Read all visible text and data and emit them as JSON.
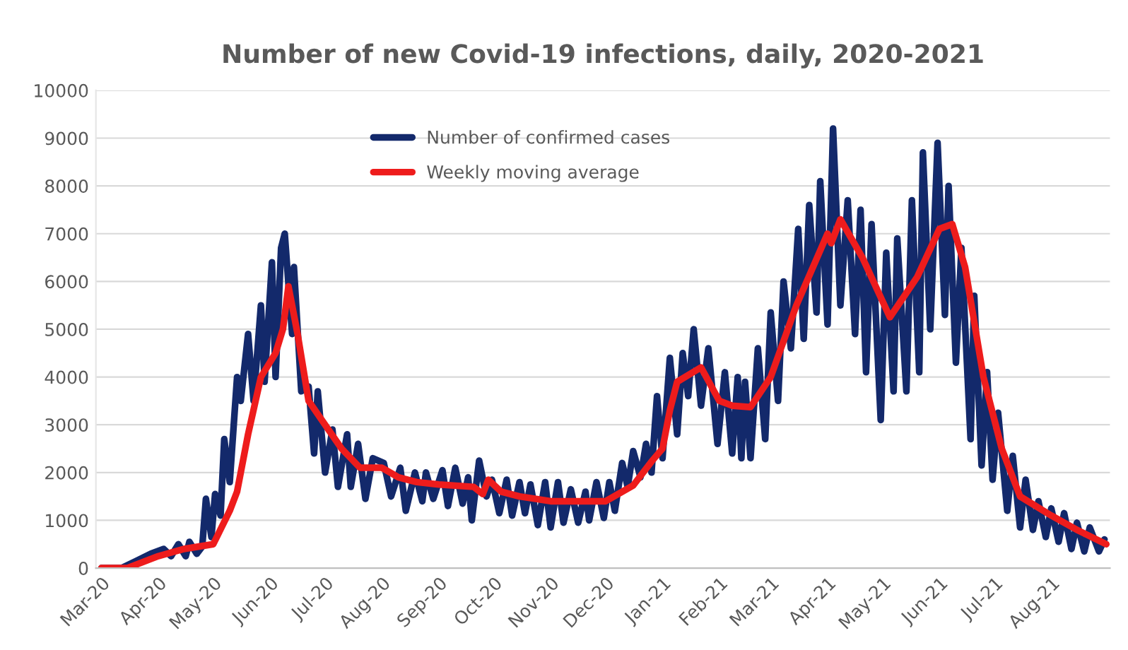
{
  "chart_data": {
    "type": "line",
    "title": "Number of new Covid-19 infections, daily, 2020-2021",
    "series": [
      {
        "name": "Number of confirmed cases",
        "color": "#13296b",
        "x": [
          "2020-03-01",
          "2020-03-12",
          "2020-03-20",
          "2020-03-28",
          "2020-04-04",
          "2020-04-08",
          "2020-04-12",
          "2020-04-16",
          "2020-04-18",
          "2020-04-22",
          "2020-04-25",
          "2020-04-27",
          "2020-04-30",
          "2020-05-02",
          "2020-05-05",
          "2020-05-07",
          "2020-05-10",
          "2020-05-14",
          "2020-05-16",
          "2020-05-20",
          "2020-05-23",
          "2020-05-27",
          "2020-05-29",
          "2020-06-02",
          "2020-06-04",
          "2020-06-07",
          "2020-06-09",
          "2020-06-13",
          "2020-06-14",
          "2020-06-18",
          "2020-06-22",
          "2020-06-25",
          "2020-06-27",
          "2020-07-01",
          "2020-07-05",
          "2020-07-08",
          "2020-07-13",
          "2020-07-15",
          "2020-07-19",
          "2020-07-23",
          "2020-07-27",
          "2020-08-02",
          "2020-08-06",
          "2020-08-11",
          "2020-08-14",
          "2020-08-19",
          "2020-08-23",
          "2020-08-25",
          "2020-08-29",
          "2020-09-03",
          "2020-09-06",
          "2020-09-10",
          "2020-09-14",
          "2020-09-17",
          "2020-09-19",
          "2020-09-23",
          "2020-09-27",
          "2020-09-30",
          "2020-10-04",
          "2020-10-08",
          "2020-10-11",
          "2020-10-15",
          "2020-10-18",
          "2020-10-21",
          "2020-10-25",
          "2020-10-29",
          "2020-11-01",
          "2020-11-05",
          "2020-11-08",
          "2020-11-12",
          "2020-11-16",
          "2020-11-20",
          "2020-11-22",
          "2020-11-26",
          "2020-11-30",
          "2020-12-03",
          "2020-12-06",
          "2020-12-10",
          "2020-12-13",
          "2020-12-16",
          "2020-12-20",
          "2020-12-23",
          "2020-12-26",
          "2020-12-29",
          "2021-01-01",
          "2021-01-05",
          "2021-01-09",
          "2021-01-12",
          "2021-01-15",
          "2021-01-18",
          "2021-01-22",
          "2021-01-26",
          "2021-01-31",
          "2021-02-04",
          "2021-02-08",
          "2021-02-11",
          "2021-02-13",
          "2021-02-15",
          "2021-02-18",
          "2021-02-22",
          "2021-02-26",
          "2021-03-01",
          "2021-03-05",
          "2021-03-08",
          "2021-03-12",
          "2021-03-16",
          "2021-03-19",
          "2021-03-22",
          "2021-03-26",
          "2021-03-28",
          "2021-04-01",
          "2021-04-04",
          "2021-04-08",
          "2021-04-12",
          "2021-04-16",
          "2021-04-19",
          "2021-04-22",
          "2021-04-25",
          "2021-04-30",
          "2021-05-03",
          "2021-05-07",
          "2021-05-09",
          "2021-05-14",
          "2021-05-17",
          "2021-05-21",
          "2021-05-23",
          "2021-05-27",
          "2021-05-31",
          "2021-06-04",
          "2021-06-06",
          "2021-06-10",
          "2021-06-13",
          "2021-06-18",
          "2021-06-20",
          "2021-06-24",
          "2021-06-27",
          "2021-06-30",
          "2021-07-03",
          "2021-07-08",
          "2021-07-11",
          "2021-07-15",
          "2021-07-18",
          "2021-07-22",
          "2021-07-25",
          "2021-07-29",
          "2021-08-01",
          "2021-08-05",
          "2021-08-08",
          "2021-08-12",
          "2021-08-15",
          "2021-08-19",
          "2021-08-22",
          "2021-08-27",
          "2021-08-30"
        ],
        "values": [
          0,
          0,
          150,
          300,
          400,
          250,
          500,
          250,
          550,
          300,
          450,
          1450,
          650,
          1550,
          1100,
          2700,
          1800,
          4000,
          3500,
          4900,
          3500,
          5500,
          3900,
          6400,
          4000,
          6700,
          7000,
          4900,
          6300,
          3700,
          3800,
          2400,
          3700,
          2000,
          2900,
          1700,
          2800,
          1700,
          2600,
          1450,
          2300,
          2200,
          1500,
          2100,
          1200,
          2000,
          1400,
          2000,
          1450,
          2050,
          1300,
          2100,
          1350,
          1900,
          1000,
          2250,
          1500,
          1850,
          1150,
          1850,
          1100,
          1800,
          1150,
          1750,
          900,
          1800,
          850,
          1800,
          950,
          1650,
          950,
          1600,
          1000,
          1800,
          1050,
          1800,
          1200,
          2200,
          1700,
          2450,
          1900,
          2600,
          2000,
          3600,
          2300,
          4400,
          2800,
          4500,
          3600,
          5000,
          3400,
          4600,
          2600,
          4100,
          2400,
          4000,
          2300,
          3900,
          2300,
          4600,
          2700,
          5350,
          3500,
          6000,
          4600,
          7100,
          4800,
          7600,
          5350,
          8100,
          5100,
          9200,
          5500,
          7700,
          4900,
          7500,
          4100,
          7200,
          3100,
          6600,
          3700,
          6900,
          3700,
          7700,
          4100,
          8700,
          5000,
          8900,
          5300,
          8000,
          4300,
          6700,
          2700,
          5700,
          2150,
          4100,
          1850,
          3250,
          1200,
          2350,
          850,
          1850,
          800,
          1400,
          650,
          1250,
          550,
          1150,
          400,
          950,
          350,
          850,
          350,
          600
        ]
      },
      {
        "name": "Weekly moving average",
        "color": "#ee1c1c",
        "x": [
          "2020-03-01",
          "2020-03-15",
          "2020-04-01",
          "2020-04-15",
          "2020-05-01",
          "2020-05-10",
          "2020-05-14",
          "2020-05-20",
          "2020-05-27",
          "2020-06-04",
          "2020-06-08",
          "2020-06-11",
          "2020-06-16",
          "2020-06-22",
          "2020-07-01",
          "2020-07-10",
          "2020-07-20",
          "2020-08-01",
          "2020-08-10",
          "2020-08-20",
          "2020-09-01",
          "2020-09-20",
          "2020-09-25",
          "2020-09-28",
          "2020-10-05",
          "2020-10-15",
          "2020-11-01",
          "2020-12-01",
          "2020-12-16",
          "2020-12-26",
          "2021-01-01",
          "2021-01-05",
          "2021-01-09",
          "2021-01-22",
          "2021-02-01",
          "2021-02-08",
          "2021-02-18",
          "2021-03-01",
          "2021-03-15",
          "2021-04-01",
          "2021-04-03",
          "2021-04-08",
          "2021-04-20",
          "2021-05-05",
          "2021-05-20",
          "2021-06-01",
          "2021-06-08",
          "2021-06-15",
          "2021-06-25",
          "2021-07-05",
          "2021-07-15",
          "2021-08-01",
          "2021-08-15",
          "2021-08-31"
        ],
        "values": [
          0,
          0,
          250,
          400,
          500,
          1200,
          1600,
          2800,
          4000,
          4500,
          5000,
          5900,
          4900,
          3500,
          3000,
          2500,
          2100,
          2100,
          1900,
          1800,
          1750,
          1700,
          1550,
          1850,
          1600,
          1500,
          1400,
          1400,
          1730,
          2230,
          2500,
          3300,
          3900,
          4200,
          3500,
          3400,
          3370,
          4000,
          5500,
          7000,
          6800,
          7300,
          6500,
          5250,
          6100,
          7100,
          7200,
          6300,
          4000,
          2500,
          1500,
          1100,
          800,
          500
        ]
      }
    ],
    "xlim": [
      "2020-02-27",
      "2021-09-02"
    ],
    "xticks": [
      {
        "value": "2020-03-01",
        "label": "Mar-20"
      },
      {
        "value": "2020-04-01",
        "label": "Apr-20"
      },
      {
        "value": "2020-05-01",
        "label": "May-20"
      },
      {
        "value": "2020-06-01",
        "label": "Jun-20"
      },
      {
        "value": "2020-07-01",
        "label": "Jul-20"
      },
      {
        "value": "2020-08-01",
        "label": "Aug-20"
      },
      {
        "value": "2020-09-01",
        "label": "Sep-20"
      },
      {
        "value": "2020-10-01",
        "label": "Oct-20"
      },
      {
        "value": "2020-11-01",
        "label": "Nov-20"
      },
      {
        "value": "2020-12-01",
        "label": "Dec-20"
      },
      {
        "value": "2021-01-01",
        "label": "Jan-21"
      },
      {
        "value": "2021-02-01",
        "label": "Feb-21"
      },
      {
        "value": "2021-03-01",
        "label": "Mar-21"
      },
      {
        "value": "2021-04-01",
        "label": "Apr-21"
      },
      {
        "value": "2021-05-01",
        "label": "May-21"
      },
      {
        "value": "2021-06-01",
        "label": "Jun-21"
      },
      {
        "value": "2021-07-01",
        "label": "Jul-21"
      },
      {
        "value": "2021-08-01",
        "label": "Aug-21"
      }
    ],
    "ylim": [
      0,
      10000
    ],
    "yticks": [
      0,
      1000,
      2000,
      3000,
      4000,
      5000,
      6000,
      7000,
      8000,
      9000,
      10000
    ],
    "grid": "y",
    "legend": "top"
  }
}
